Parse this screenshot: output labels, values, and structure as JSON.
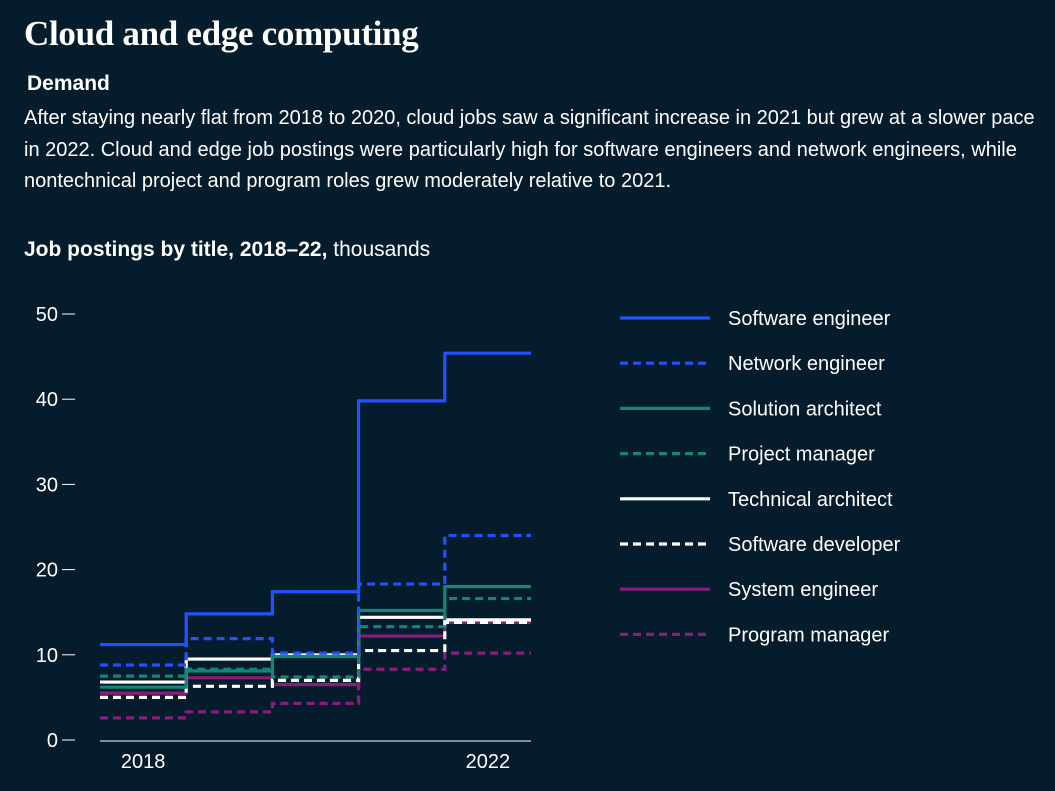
{
  "header": {
    "title": "Cloud and edge computing",
    "subtitle": "Demand",
    "description": "After staying nearly flat from 2018 to 2020, cloud jobs saw a significant increase in 2021 but grew at a slower pace in 2022. Cloud and edge job postings were particularly high for software engineers and network engineers, while nontechnical project and program roles grew moderately relative to 2021."
  },
  "chart_heading": {
    "bold": "Job postings by title, 2018–22,",
    "normal": " thousands"
  },
  "chart_data": {
    "type": "line",
    "step": true,
    "x": [
      2018,
      2019,
      2020,
      2021,
      2022
    ],
    "x_tick_labels": [
      "2018",
      "2022"
    ],
    "y_ticks": [
      0,
      10,
      20,
      30,
      40,
      50
    ],
    "ylim": [
      0,
      50
    ],
    "grid": false,
    "legend_position": "right",
    "series": [
      {
        "name": "Software engineer",
        "color": "#2251ff",
        "style": "solid",
        "values": [
          11.2,
          14.8,
          17.4,
          39.8,
          45.4
        ]
      },
      {
        "name": "Network engineer",
        "color": "#2251ff",
        "style": "dashed",
        "values": [
          8.8,
          11.9,
          10.2,
          18.3,
          24.0
        ]
      },
      {
        "name": "Solution architect",
        "color": "#14857a",
        "style": "solid",
        "values": [
          6.2,
          8.1,
          9.8,
          15.2,
          18.0
        ]
      },
      {
        "name": "Project manager",
        "color": "#14857a",
        "style": "dashed",
        "values": [
          7.5,
          8.3,
          7.4,
          13.3,
          16.6
        ]
      },
      {
        "name": "Technical architect",
        "color": "#ffffff",
        "style": "solid",
        "values": [
          6.8,
          9.5,
          10.0,
          14.4,
          14.1
        ]
      },
      {
        "name": "Software developer",
        "color": "#ffffff",
        "style": "dashed",
        "values": [
          5.0,
          6.3,
          7.0,
          10.5,
          13.8
        ]
      },
      {
        "name": "System engineer",
        "color": "#8c1c7c",
        "style": "solid",
        "values": [
          5.5,
          7.3,
          6.5,
          12.2,
          13.8
        ]
      },
      {
        "name": "Program manager",
        "color": "#8c1c7c",
        "style": "dashed",
        "values": [
          2.6,
          3.3,
          4.3,
          8.3,
          10.2
        ]
      }
    ]
  }
}
